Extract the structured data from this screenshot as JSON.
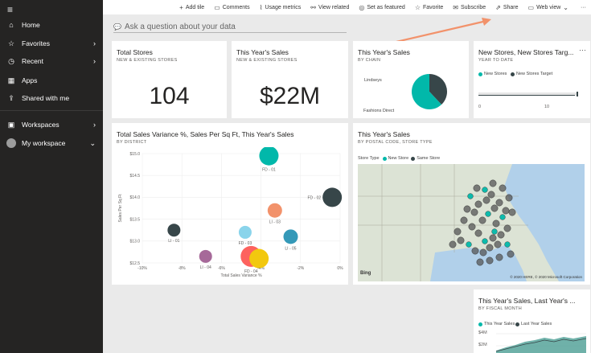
{
  "sidebar": {
    "items": [
      {
        "label": "Home",
        "icon": "home-icon",
        "glyph": "⌂"
      },
      {
        "label": "Favorites",
        "icon": "star-icon",
        "glyph": "☆"
      },
      {
        "label": "Recent",
        "icon": "clock-icon",
        "glyph": "◷"
      },
      {
        "label": "Apps",
        "icon": "apps-icon",
        "glyph": "▦"
      },
      {
        "label": "Shared with me",
        "icon": "shared-icon",
        "glyph": "⇪"
      },
      {
        "label": "Workspaces",
        "icon": "workspaces-icon",
        "glyph": "▣"
      },
      {
        "label": "My workspace",
        "icon": "avatar-icon",
        "glyph": ""
      }
    ]
  },
  "toolbar": {
    "add_tile": "Add tile",
    "comments": "Comments",
    "usage_metrics": "Usage metrics",
    "view_related": "View related",
    "set_as_featured": "Set as featured",
    "favorite": "Favorite",
    "subscribe": "Subscribe",
    "share": "Share",
    "web_view": "Web view",
    "more": "···"
  },
  "qa": {
    "placeholder": "Ask a question about your data"
  },
  "tiles": {
    "total_stores": {
      "title": "Total Stores",
      "subtitle": "NEW & EXISTING STORES",
      "value": "104"
    },
    "this_year_sales": {
      "title": "This Year's Sales",
      "subtitle": "NEW & EXISTING STORES",
      "value": "$22M"
    },
    "sales_by_chain": {
      "title": "This Year's Sales",
      "subtitle": "BY CHAIN",
      "labels": [
        "Lindseys",
        "Fashions Direct"
      ]
    },
    "new_stores": {
      "title": "New Stores, New Stores Targ...",
      "subtitle": "YEAR TO DATE",
      "legend": [
        "New Stores",
        "New Stores Target"
      ],
      "ticks": [
        "0",
        "10"
      ],
      "more": "···"
    },
    "variance": {
      "title": "Total Sales Variance %, Sales Per Sq Ft, This Year's Sales",
      "subtitle": "BY DISTRICT",
      "xlabel": "Total Sales Variance %",
      "ylabel": "Sales Per Sq Ft"
    },
    "map": {
      "title": "This Year's Sales",
      "subtitle": "BY POSTAL CODE, STORE TYPE",
      "legend_title": "Store Type",
      "legend": [
        "New Store",
        "Same Store"
      ],
      "bing": "Bing",
      "credit": "© 2020 HERE, © 2020 Microsoft Corporation"
    },
    "fiscal": {
      "title": "This Year's Sales, Last Year's ...",
      "subtitle": "BY FISCAL MONTH",
      "legend": [
        "This Year Sales",
        "Last Year Sales"
      ],
      "ytick": "$4M",
      "ytick2": "$2M"
    }
  },
  "colors": {
    "teal": "#01b8aa",
    "dark": "#374649",
    "orange": "#f2926b",
    "accent_arrow": "#f2926b"
  },
  "chart_data": [
    {
      "type": "pie",
      "title": "This Year's Sales",
      "categories": [
        "Lindseys",
        "Fashions Direct"
      ],
      "values": [
        38,
        62
      ]
    },
    {
      "type": "scatter",
      "title": "Total Sales Variance %, Sales Per Sq Ft, This Year's Sales",
      "xlabel": "Total Sales Variance %",
      "ylabel": "Sales Per Sq Ft",
      "xlim": [
        -10,
        0
      ],
      "ylim": [
        12.5,
        15.0
      ],
      "xticks": [
        "-10%",
        "-8%",
        "-6%",
        "-4%",
        "-2%",
        "0%"
      ],
      "yticks": [
        "$15.0",
        "$14.5",
        "$14.0",
        "$13.5",
        "$13.0",
        "$12.5"
      ],
      "points": [
        {
          "label": "FD - 01",
          "x": -3.6,
          "y": 14.95,
          "size": 12,
          "color": "#01b8aa"
        },
        {
          "label": "FD - 02",
          "x": -0.4,
          "y": 14.0,
          "size": 12,
          "color": "#374649"
        },
        {
          "label": "LI - 03",
          "x": -3.3,
          "y": 13.7,
          "size": 9,
          "color": "#f2926b"
        },
        {
          "label": "LI - 01",
          "x": -8.4,
          "y": 13.25,
          "size": 8,
          "color": "#374649"
        },
        {
          "label": "FD - 03",
          "x": -4.8,
          "y": 13.2,
          "size": 8,
          "color": "#8ad4eb"
        },
        {
          "label": "LI - 05",
          "x": -2.5,
          "y": 13.1,
          "size": 9,
          "color": "#3599b8"
        },
        {
          "label": "LI - 04",
          "x": -6.8,
          "y": 12.65,
          "size": 8,
          "color": "#a66999"
        },
        {
          "label": "FD - 04",
          "x": -4.5,
          "y": 12.65,
          "size": 13,
          "color": "#fd625e"
        },
        {
          "label": "",
          "x": -4.1,
          "y": 12.6,
          "size": 12,
          "color": "#f2c80f"
        }
      ]
    },
    {
      "type": "bar",
      "title": "New Stores, New Stores Targ...",
      "series": [
        {
          "name": "New Stores",
          "values": [
            0
          ]
        },
        {
          "name": "New Stores Target",
          "values": [
            15
          ]
        }
      ],
      "xlim": [
        0,
        15
      ]
    }
  ]
}
